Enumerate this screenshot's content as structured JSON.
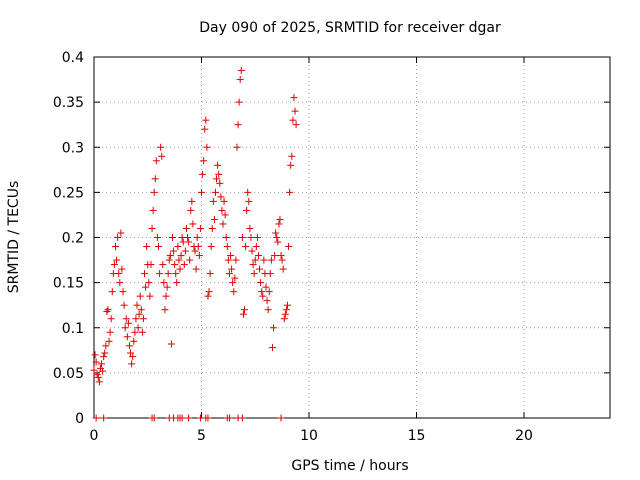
{
  "chart_data": {
    "type": "scatter",
    "title": "Day 090 of 2025, SRMTID for receiver dgar",
    "xlabel": "GPS time / hours",
    "ylabel": "SRMTID / TECUs",
    "xlim": [
      0,
      24
    ],
    "ylim": [
      0,
      0.4
    ],
    "xticks": [
      0,
      5,
      10,
      15,
      20
    ],
    "yticks": [
      0,
      0.05,
      0.1,
      0.15,
      0.2,
      0.25,
      0.3,
      0.35,
      0.4
    ],
    "xtick_labels": [
      "0",
      "5",
      "10",
      "15",
      "20"
    ],
    "ytick_labels": [
      "0",
      "0.05",
      "0.1",
      "0.15",
      "0.2",
      "0.25",
      "0.3",
      "0.35",
      "0.4"
    ],
    "grid": true,
    "marker": "+",
    "color": "#e00000",
    "series": [
      {
        "name": "SRMTID",
        "points": [
          [
            0.0,
            0.053
          ],
          [
            0.05,
            0.07
          ],
          [
            0.1,
            0.062
          ],
          [
            0.15,
            0.048
          ],
          [
            0.2,
            0.045
          ],
          [
            0.25,
            0.04
          ],
          [
            0.3,
            0.055
          ],
          [
            0.35,
            0.06
          ],
          [
            0.4,
            0.052
          ],
          [
            0.45,
            0.068
          ],
          [
            0.5,
            0.072
          ],
          [
            0.55,
            0.08
          ],
          [
            0.6,
            0.118
          ],
          [
            0.65,
            0.12
          ],
          [
            0.7,
            0.085
          ],
          [
            0.75,
            0.095
          ],
          [
            0.8,
            0.11
          ],
          [
            0.85,
            0.14
          ],
          [
            0.9,
            0.16
          ],
          [
            0.95,
            0.17
          ],
          [
            1.0,
            0.19
          ],
          [
            1.05,
            0.175
          ],
          [
            1.1,
            0.2
          ],
          [
            1.15,
            0.16
          ],
          [
            1.2,
            0.15
          ],
          [
            1.25,
            0.205
          ],
          [
            1.3,
            0.165
          ],
          [
            1.35,
            0.14
          ],
          [
            1.4,
            0.125
          ],
          [
            1.45,
            0.1
          ],
          [
            1.5,
            0.11
          ],
          [
            1.55,
            0.09
          ],
          [
            1.6,
            0.105
          ],
          [
            1.65,
            0.08
          ],
          [
            1.7,
            0.072
          ],
          [
            1.75,
            0.06
          ],
          [
            1.8,
            0.068
          ],
          [
            1.85,
            0.085
          ],
          [
            1.9,
            0.095
          ],
          [
            1.95,
            0.11
          ],
          [
            2.0,
            0.125
          ],
          [
            2.05,
            0.1
          ],
          [
            2.1,
            0.115
          ],
          [
            2.15,
            0.135
          ],
          [
            2.2,
            0.12
          ],
          [
            2.25,
            0.095
          ],
          [
            2.3,
            0.11
          ],
          [
            2.35,
            0.16
          ],
          [
            2.4,
            0.145
          ],
          [
            2.45,
            0.19
          ],
          [
            2.5,
            0.17
          ],
          [
            2.55,
            0.15
          ],
          [
            2.6,
            0.135
          ],
          [
            2.65,
            0.17
          ],
          [
            2.7,
            0.21
          ],
          [
            2.75,
            0.23
          ],
          [
            2.8,
            0.25
          ],
          [
            2.85,
            0.265
          ],
          [
            2.9,
            0.285
          ],
          [
            2.95,
            0.2
          ],
          [
            3.0,
            0.19
          ],
          [
            3.05,
            0.16
          ],
          [
            3.1,
            0.3
          ],
          [
            3.15,
            0.29
          ],
          [
            3.2,
            0.17
          ],
          [
            3.25,
            0.15
          ],
          [
            3.3,
            0.12
          ],
          [
            3.35,
            0.135
          ],
          [
            3.4,
            0.145
          ],
          [
            3.45,
            0.16
          ],
          [
            3.5,
            0.175
          ],
          [
            3.55,
            0.18
          ],
          [
            3.6,
            0.082
          ],
          [
            3.65,
            0.2
          ],
          [
            3.7,
            0.185
          ],
          [
            3.75,
            0.17
          ],
          [
            3.8,
            0.16
          ],
          [
            3.85,
            0.15
          ],
          [
            3.9,
            0.19
          ],
          [
            3.95,
            0.175
          ],
          [
            4.0,
            0.165
          ],
          [
            4.05,
            0.18
          ],
          [
            4.1,
            0.2
          ],
          [
            4.15,
            0.195
          ],
          [
            4.2,
            0.17
          ],
          [
            4.25,
            0.185
          ],
          [
            4.3,
            0.21
          ],
          [
            4.35,
            0.2
          ],
          [
            4.4,
            0.195
          ],
          [
            4.45,
            0.175
          ],
          [
            4.5,
            0.23
          ],
          [
            4.55,
            0.24
          ],
          [
            4.6,
            0.215
          ],
          [
            4.65,
            0.19
          ],
          [
            4.7,
            0.185
          ],
          [
            4.75,
            0.165
          ],
          [
            4.8,
            0.2
          ],
          [
            4.85,
            0.19
          ],
          [
            4.9,
            0.18
          ],
          [
            4.95,
            0.21
          ],
          [
            5.0,
            0.25
          ],
          [
            5.05,
            0.27
          ],
          [
            5.1,
            0.285
          ],
          [
            5.15,
            0.32
          ],
          [
            5.2,
            0.33
          ],
          [
            5.25,
            0.3
          ],
          [
            5.3,
            0.135
          ],
          [
            5.35,
            0.14
          ],
          [
            5.4,
            0.16
          ],
          [
            5.45,
            0.19
          ],
          [
            5.5,
            0.21
          ],
          [
            5.55,
            0.24
          ],
          [
            5.6,
            0.22
          ],
          [
            5.65,
            0.25
          ],
          [
            5.7,
            0.265
          ],
          [
            5.75,
            0.28
          ],
          [
            5.8,
            0.27
          ],
          [
            5.85,
            0.26
          ],
          [
            5.9,
            0.245
          ],
          [
            5.95,
            0.23
          ],
          [
            6.0,
            0.215
          ],
          [
            6.05,
            0.24
          ],
          [
            6.1,
            0.225
          ],
          [
            6.15,
            0.2
          ],
          [
            6.2,
            0.19
          ],
          [
            6.25,
            0.175
          ],
          [
            6.3,
            0.16
          ],
          [
            6.35,
            0.18
          ],
          [
            6.4,
            0.165
          ],
          [
            6.45,
            0.15
          ],
          [
            6.5,
            0.14
          ],
          [
            6.55,
            0.155
          ],
          [
            6.6,
            0.175
          ],
          [
            6.65,
            0.3
          ],
          [
            6.7,
            0.325
          ],
          [
            6.75,
            0.35
          ],
          [
            6.8,
            0.375
          ],
          [
            6.85,
            0.385
          ],
          [
            6.9,
            0.2
          ],
          [
            6.95,
            0.115
          ],
          [
            7.0,
            0.12
          ],
          [
            7.05,
            0.19
          ],
          [
            7.1,
            0.23
          ],
          [
            7.15,
            0.25
          ],
          [
            7.2,
            0.24
          ],
          [
            7.25,
            0.21
          ],
          [
            7.3,
            0.2
          ],
          [
            7.35,
            0.185
          ],
          [
            7.4,
            0.17
          ],
          [
            7.45,
            0.16
          ],
          [
            7.5,
            0.175
          ],
          [
            7.55,
            0.19
          ],
          [
            7.6,
            0.2
          ],
          [
            7.65,
            0.18
          ],
          [
            7.7,
            0.165
          ],
          [
            7.75,
            0.15
          ],
          [
            7.8,
            0.14
          ],
          [
            7.85,
            0.135
          ],
          [
            7.9,
            0.175
          ],
          [
            7.95,
            0.16
          ],
          [
            8.0,
            0.145
          ],
          [
            8.05,
            0.13
          ],
          [
            8.1,
            0.12
          ],
          [
            8.15,
            0.14
          ],
          [
            8.2,
            0.16
          ],
          [
            8.25,
            0.175
          ],
          [
            8.3,
            0.078
          ],
          [
            8.35,
            0.1
          ],
          [
            8.4,
            0.18
          ],
          [
            8.45,
            0.205
          ],
          [
            8.5,
            0.2
          ],
          [
            8.55,
            0.195
          ],
          [
            8.6,
            0.215
          ],
          [
            8.65,
            0.22
          ],
          [
            8.7,
            0.18
          ],
          [
            8.75,
            0.175
          ],
          [
            8.8,
            0.165
          ],
          [
            8.85,
            0.11
          ],
          [
            8.9,
            0.115
          ],
          [
            8.95,
            0.12
          ],
          [
            9.0,
            0.125
          ],
          [
            9.05,
            0.19
          ],
          [
            9.1,
            0.25
          ],
          [
            9.15,
            0.28
          ],
          [
            9.2,
            0.29
          ],
          [
            9.25,
            0.33
          ],
          [
            9.3,
            0.355
          ],
          [
            9.35,
            0.34
          ],
          [
            9.4,
            0.325
          ],
          [
            0.1,
            0.0
          ],
          [
            0.45,
            0.0
          ],
          [
            2.7,
            0.0
          ],
          [
            2.8,
            0.0
          ],
          [
            3.5,
            0.0
          ],
          [
            3.7,
            0.0
          ],
          [
            3.9,
            0.0
          ],
          [
            4.0,
            0.0
          ],
          [
            4.1,
            0.0
          ],
          [
            4.4,
            0.0
          ],
          [
            4.95,
            0.0
          ],
          [
            5.2,
            0.0
          ],
          [
            5.3,
            0.0
          ],
          [
            6.2,
            0.0
          ],
          [
            6.3,
            0.0
          ],
          [
            6.7,
            0.0
          ],
          [
            6.9,
            0.0
          ],
          [
            8.7,
            0.0
          ]
        ]
      }
    ]
  }
}
